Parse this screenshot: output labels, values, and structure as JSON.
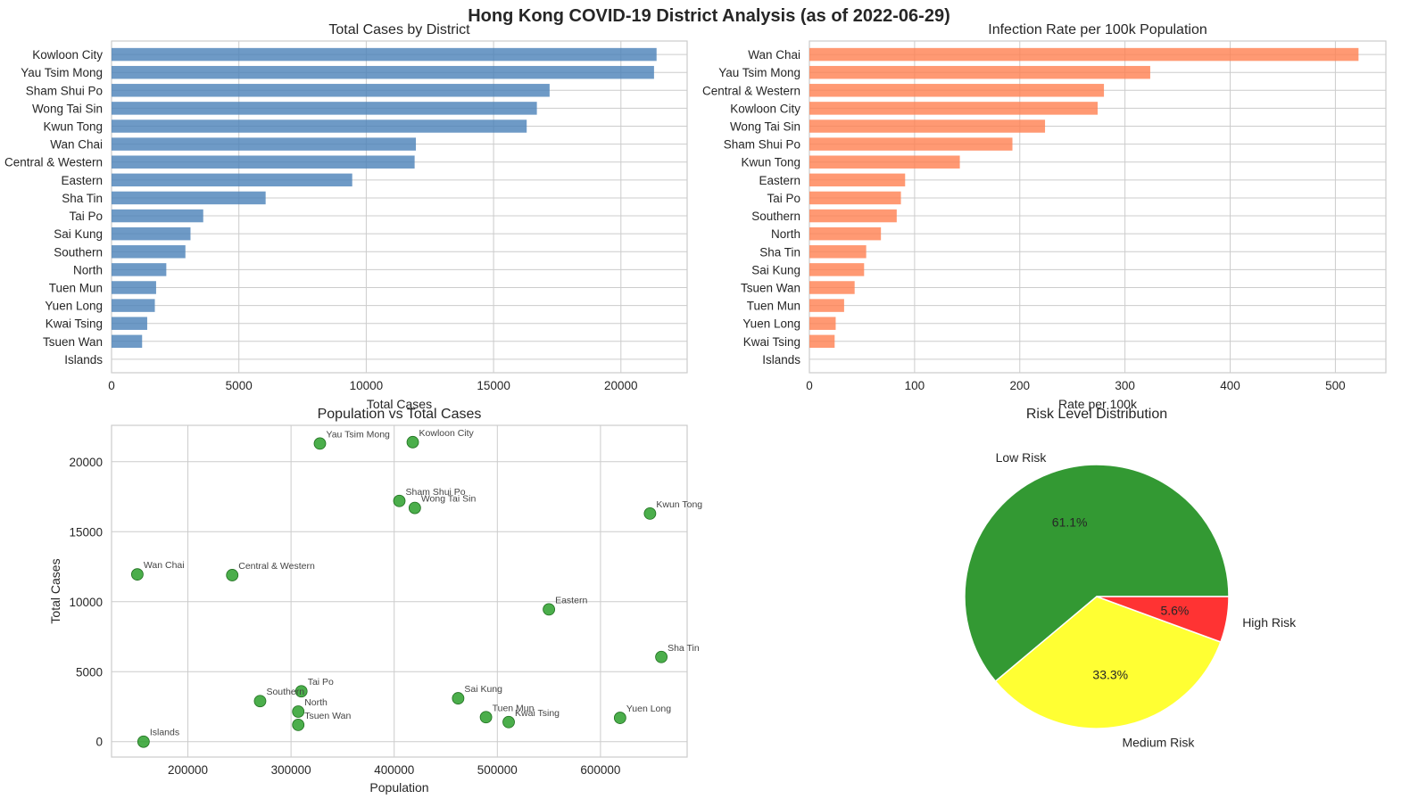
{
  "suptitle": "Hong Kong COVID-19 District Analysis (as of 2022-06-29)",
  "colors": {
    "cases_bar": "#4a81b8",
    "rate_bar": "#ff7f50",
    "scatter": "#2ca02c",
    "pie_low": "#339933",
    "pie_medium": "#ffff33",
    "pie_high": "#ff3333"
  },
  "chart_data": [
    {
      "type": "bar",
      "orientation": "horizontal",
      "title": "Total Cases by District",
      "xlabel": "Total Cases",
      "ylabel": "",
      "xlim": [
        0,
        22600
      ],
      "xticks": [
        0,
        5000,
        10000,
        15000,
        20000
      ],
      "grid": true,
      "categories": [
        "Kowloon City",
        "Yau Tsim Mong",
        "Sham Shui Po",
        "Wong Tai Sin",
        "Kwun Tong",
        "Wan Chai",
        "Central & Western",
        "Eastern",
        "Sha Tin",
        "Tai Po",
        "Sai Kung",
        "Southern",
        "North",
        "Tuen Mun",
        "Yuen Long",
        "Kwai Tsing",
        "Tsuen Wan",
        "Islands"
      ],
      "values": [
        21400,
        21300,
        17200,
        16700,
        16300,
        11950,
        11900,
        9450,
        6050,
        3600,
        3100,
        2900,
        2150,
        1750,
        1700,
        1400,
        1200,
        0
      ]
    },
    {
      "type": "bar",
      "orientation": "horizontal",
      "title": "Infection Rate per 100k Population",
      "xlabel": "Rate per 100k",
      "ylabel": "",
      "xlim": [
        0,
        548
      ],
      "xticks": [
        0,
        100,
        200,
        300,
        400,
        500
      ],
      "grid": true,
      "categories": [
        "Wan Chai",
        "Yau Tsim Mong",
        "Central & Western",
        "Kowloon City",
        "Wong Tai Sin",
        "Sham Shui Po",
        "Kwun Tong",
        "Eastern",
        "Tai Po",
        "Southern",
        "North",
        "Sha Tin",
        "Sai Kung",
        "Tsuen Wan",
        "Tuen Mun",
        "Yuen Long",
        "Kwai Tsing",
        "Islands"
      ],
      "values": [
        522,
        324,
        280,
        274,
        224,
        193,
        143,
        91,
        87,
        83,
        68,
        54,
        52,
        43,
        33,
        25,
        24,
        0
      ]
    },
    {
      "type": "scatter",
      "title": "Population vs Total Cases",
      "xlabel": "Population",
      "ylabel": "Total Cases",
      "xlim": [
        126000,
        684000
      ],
      "ylim": [
        -1100,
        22600
      ],
      "xticks": [
        200000,
        300000,
        400000,
        500000,
        600000
      ],
      "yticks": [
        0,
        5000,
        10000,
        15000,
        20000
      ],
      "grid": true,
      "points": [
        {
          "label": "Yau Tsim Mong",
          "x": 328000,
          "y": 21300
        },
        {
          "label": "Kowloon City",
          "x": 418000,
          "y": 21400
        },
        {
          "label": "Sham Shui Po",
          "x": 405000,
          "y": 17200
        },
        {
          "label": "Wong Tai Sin",
          "x": 420000,
          "y": 16700
        },
        {
          "label": "Kwun Tong",
          "x": 648000,
          "y": 16300
        },
        {
          "label": "Wan Chai",
          "x": 151000,
          "y": 11950
        },
        {
          "label": "Central & Western",
          "x": 243000,
          "y": 11900
        },
        {
          "label": "Eastern",
          "x": 550000,
          "y": 9450
        },
        {
          "label": "Sha Tin",
          "x": 659000,
          "y": 6050
        },
        {
          "label": "Tai Po",
          "x": 310000,
          "y": 3600
        },
        {
          "label": "Southern",
          "x": 270000,
          "y": 2900
        },
        {
          "label": "North",
          "x": 307000,
          "y": 2150
        },
        {
          "label": "Tsuen Wan",
          "x": 307000,
          "y": 1200
        },
        {
          "label": "Sai Kung",
          "x": 462000,
          "y": 3100
        },
        {
          "label": "Tuen Mun",
          "x": 489000,
          "y": 1750
        },
        {
          "label": "Kwai Tsing",
          "x": 511000,
          "y": 1400
        },
        {
          "label": "Yuen Long",
          "x": 619000,
          "y": 1700
        },
        {
          "label": "Islands",
          "x": 157000,
          "y": 0
        }
      ]
    },
    {
      "type": "pie",
      "title": "Risk Level Distribution",
      "slices": [
        {
          "label": "Low Risk",
          "value": 61.1,
          "pct_label": "61.1%"
        },
        {
          "label": "Medium Risk",
          "value": 33.3,
          "pct_label": "33.3%"
        },
        {
          "label": "High Risk",
          "value": 5.6,
          "pct_label": "5.6%"
        }
      ]
    }
  ]
}
